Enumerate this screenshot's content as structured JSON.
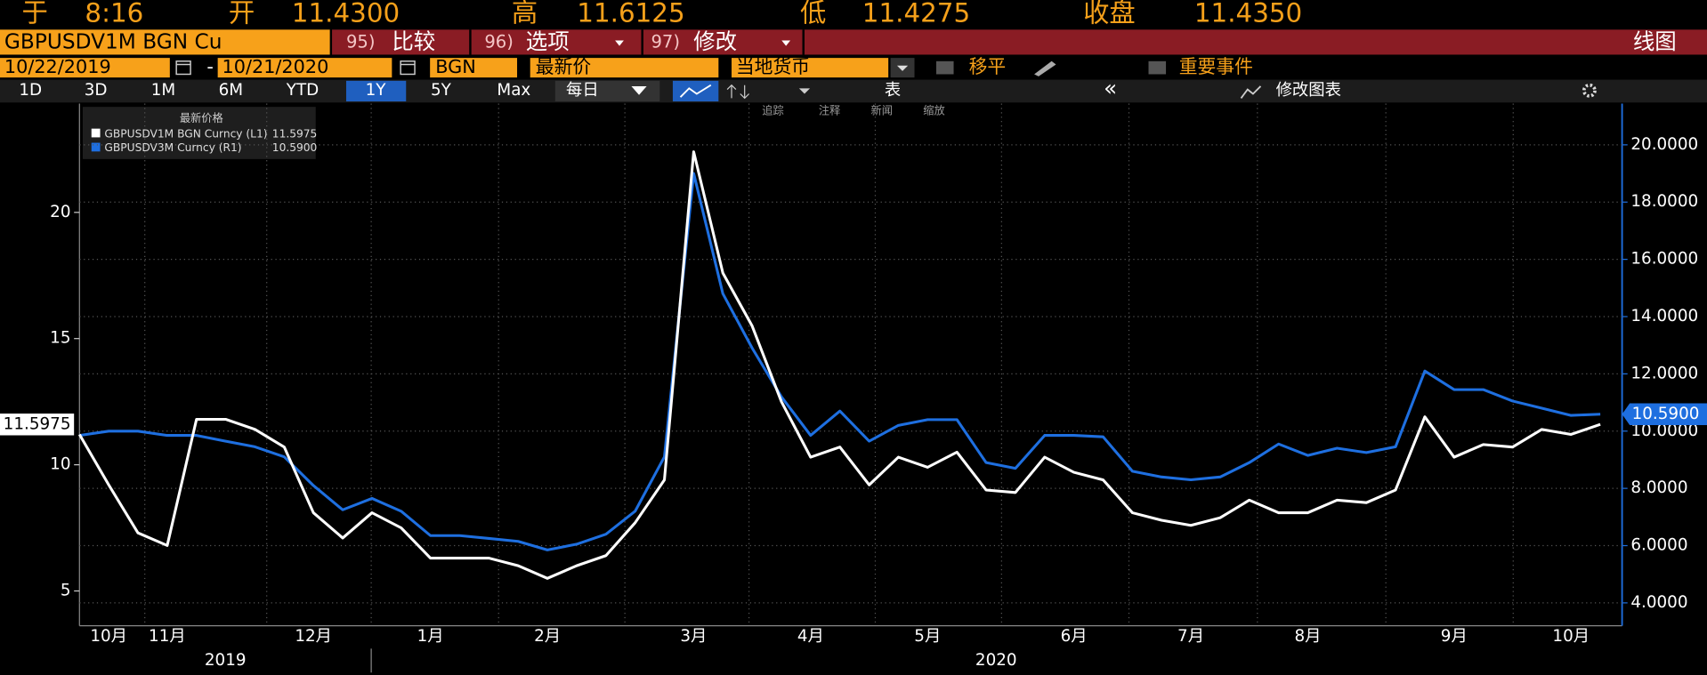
{
  "header": {
    "time_label": "于",
    "time": "8:16",
    "open_label": "开",
    "open": "11.4300",
    "high_label": "高",
    "high": "11.6125",
    "low_label": "低",
    "low": "11.4275",
    "close_label": "收盘",
    "close": "11.4350"
  },
  "toolbar": {
    "ticker": "GBPUSDV1M BGN Cu",
    "menus": [
      {
        "num": "95)",
        "label": "比较"
      },
      {
        "num": "96)",
        "label": "选项"
      },
      {
        "num": "97)",
        "label": "修改"
      }
    ],
    "view": "线图"
  },
  "range_bar": {
    "start": "10/22/2019",
    "separator": "-",
    "end": "10/21/2020",
    "source": "BGN",
    "field": "最新价",
    "currency": "当地货币",
    "shift": "移平",
    "events": "重要事件"
  },
  "period_bar": {
    "periods": [
      "1D",
      "3D",
      "1M",
      "6M",
      "YTD",
      "1Y",
      "5Y",
      "Max"
    ],
    "selected": 5,
    "frequency": "每日",
    "table": "表",
    "collapse": "«",
    "edit_chart": "修改图表"
  },
  "chart_tools": [
    "追踪",
    "注释",
    "新闻",
    "缩放"
  ],
  "chart_data": {
    "type": "line",
    "legend_title": "最新价格",
    "categories": [
      null,
      "10月",
      null,
      "11月",
      null,
      null,
      null,
      null,
      "12月",
      null,
      null,
      null,
      "1月",
      null,
      null,
      null,
      "2月",
      null,
      null,
      null,
      null,
      "3月",
      null,
      null,
      null,
      "4月",
      null,
      null,
      null,
      "5月",
      null,
      null,
      null,
      null,
      "6月",
      null,
      null,
      null,
      "7月",
      null,
      null,
      null,
      "8月",
      null,
      null,
      null,
      null,
      "9月",
      null,
      null,
      null,
      "10月",
      null
    ],
    "year_labels": [
      "2019",
      "2020"
    ],
    "series": [
      {
        "name": "GBPUSDV1M BGN Curncy (L1)",
        "color": "#ffffff",
        "axis": "y",
        "last": 11.5975,
        "values": [
          11.2,
          9.2,
          7.3,
          6.8,
          11.8,
          11.8,
          11.4,
          10.7,
          8.1,
          7.1,
          8.1,
          7.5,
          6.3,
          6.3,
          6.3,
          6.0,
          5.5,
          6.0,
          6.4,
          7.7,
          9.4,
          22.4,
          17.6,
          15.5,
          12.5,
          10.3,
          10.7,
          9.2,
          10.3,
          9.9,
          10.5,
          9.0,
          8.9,
          10.3,
          9.7,
          9.4,
          8.1,
          7.8,
          7.6,
          7.9,
          8.6,
          8.1,
          8.1,
          8.6,
          8.5,
          9.0,
          11.9,
          10.3,
          10.8,
          10.7,
          11.4,
          11.2,
          11.5975
        ]
      },
      {
        "name": "GBPUSDV3M Curncy (R1)",
        "color": "#1e6fe0",
        "axis": "y2",
        "last": {
          "value": 10.59,
          "label": "10.5900"
        },
        "values": [
          9.85,
          10,
          10,
          9.85,
          9.85,
          9.65,
          9.45,
          9.1,
          8.1,
          7.25,
          7.65,
          7.2,
          6.35,
          6.35,
          6.25,
          6.15,
          5.85,
          6.05,
          6.4,
          7.2,
          9.1,
          19,
          14.8,
          12.9,
          11.2,
          9.85,
          10.7,
          9.65,
          10.2,
          10.4,
          10.4,
          8.9,
          8.7,
          9.85,
          9.85,
          9.8,
          8.6,
          8.4,
          8.3,
          8.4,
          8.9,
          9.55,
          9.15,
          9.4,
          9.25,
          9.45,
          12.1,
          11.45,
          11.45,
          11.05,
          10.8,
          10.55,
          10.59
        ]
      }
    ],
    "ylim": [
      3.62,
      24.31
    ],
    "yticks": [
      5,
      10,
      15,
      20
    ],
    "y2lim": [
      3.2,
      21.44
    ],
    "y2ticks": [
      {
        "value": 4,
        "label": "4.0000"
      },
      {
        "value": 6,
        "label": "6.0000"
      },
      {
        "value": 8,
        "label": "8.0000"
      },
      {
        "value": 10,
        "label": "10.0000"
      },
      {
        "value": 12,
        "label": "12.0000"
      },
      {
        "value": 14,
        "label": "14.0000"
      },
      {
        "value": 16,
        "label": "16.0000"
      },
      {
        "value": 18,
        "label": "18.0000"
      },
      {
        "value": 20,
        "label": "20.0000"
      }
    ],
    "grid": true
  }
}
